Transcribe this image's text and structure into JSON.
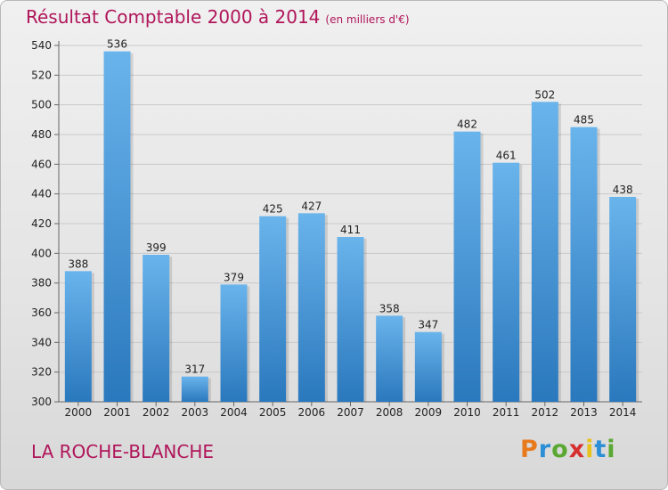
{
  "title": "Résultat Comptable 2000 à 2014",
  "subtitle": "(en milliers d'€)",
  "location": "LA ROCHE-BLANCHE",
  "logo": {
    "text": "Proxiti",
    "colors": [
      "#e87a1e",
      "#2a8fd6",
      "#5aa832",
      "#d62f2f",
      "#e8c21e",
      "#2a8fd6",
      "#5aa832"
    ]
  },
  "colors": {
    "title": "#b0155a",
    "bar": "#3d93d8",
    "bar_light": "#6ab4ec",
    "bar_dark": "#2a78bd"
  },
  "chart_data": {
    "type": "bar",
    "categories": [
      "2000",
      "2001",
      "2002",
      "2003",
      "2004",
      "2005",
      "2006",
      "2007",
      "2008",
      "2009",
      "2010",
      "2011",
      "2012",
      "2013",
      "2014"
    ],
    "values": [
      388,
      536,
      399,
      317,
      379,
      425,
      427,
      411,
      358,
      347,
      482,
      461,
      502,
      485,
      438
    ],
    "ylim": [
      300,
      540
    ],
    "yticks": [
      300,
      320,
      340,
      360,
      380,
      400,
      420,
      440,
      460,
      480,
      500,
      520,
      540
    ],
    "grid": true,
    "xlabel": "",
    "ylabel": ""
  }
}
